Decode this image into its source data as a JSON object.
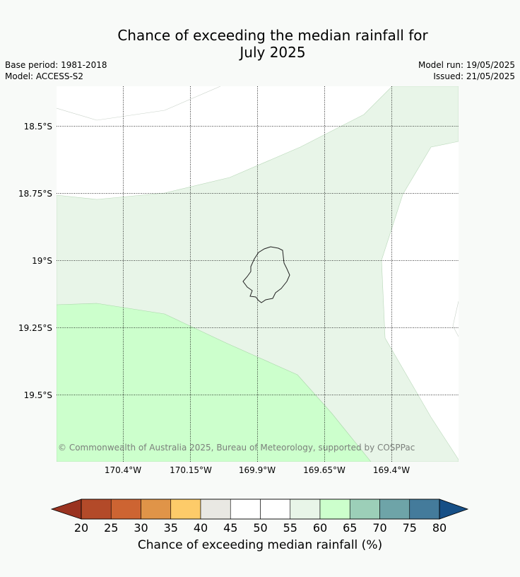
{
  "title_line1": "Chance of exceeding the median rainfall for",
  "title_line2": "July 2025",
  "base_period": "Base period: 1981-2018",
  "model": "Model: ACCESS-S2",
  "model_run": "Model run: 19/05/2025",
  "issued": "Issued: 21/05/2025",
  "copyright": "© Commonwealth of Australia 2025, Bureau of Meteorology, supported by COSPPac",
  "lat_labels": [
    "18.5°S",
    "18.75°S",
    "19°S",
    "19.25°S",
    "19.5°S"
  ],
  "lon_labels": [
    "170.4°W",
    "170.15°W",
    "169.9°W",
    "169.65°W",
    "169.4°W"
  ],
  "colorbar": {
    "label": "Chance of exceeding median rainfall (%)",
    "ticks": [
      "20",
      "25",
      "30",
      "35",
      "40",
      "45",
      "50",
      "55",
      "60",
      "65",
      "70",
      "75",
      "80"
    ],
    "under_color": "#9a3320",
    "over_color": "#164f86",
    "colors": [
      "#b34a29",
      "#cd6432",
      "#e09448",
      "#fdcb69",
      "#e9e8e3",
      "#ffffff",
      "#ffffff",
      "#e8f5e8",
      "#ccffcc",
      "#9ccfb8",
      "#6ea4a8",
      "#447b9b"
    ]
  },
  "map_categories": [
    {
      "name": "55-60%",
      "color": "#e8f5e8"
    },
    {
      "name": "60-65%",
      "color": "#ccffcc"
    },
    {
      "name": "50-55%",
      "color": "#ffffff"
    }
  ]
}
